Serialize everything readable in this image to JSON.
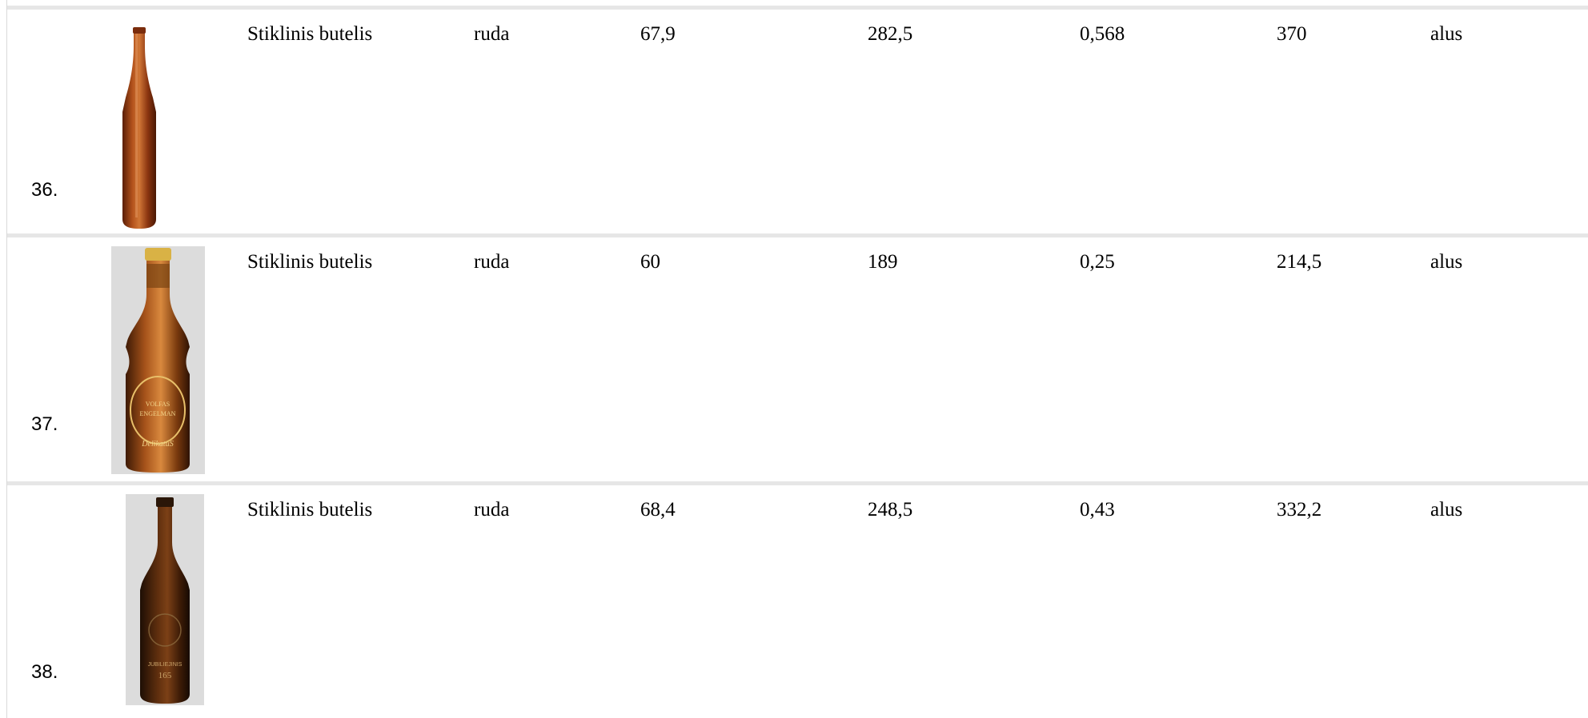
{
  "rows": [
    {
      "number": "36.",
      "name": "Stiklinis butelis",
      "color": "ruda",
      "v1": "67,9",
      "v2": "282,5",
      "v3": "0,568",
      "v4": "370",
      "use": "alus",
      "photo": "amber-long-neck-bottle"
    },
    {
      "number": "37.",
      "name": "Stiklinis butelis",
      "color": "ruda",
      "v1": "60",
      "v2": "189",
      "v3": "0,25",
      "v4": "214,5",
      "use": "alus",
      "photo": "volfas-engelman-delikatus-bottle",
      "label_text": [
        "VOLFAS",
        "ENGELMAN",
        "DelikatuS"
      ]
    },
    {
      "number": "38.",
      "name": "Stiklinis butelis",
      "color": "ruda",
      "v1": "68,4",
      "v2": "248,5",
      "v3": "0,43",
      "v4": "332,2",
      "use": "alus",
      "photo": "jubiliejinis-dark-bottle",
      "label_text": [
        "JUBILIEJINIS",
        "165"
      ]
    }
  ]
}
